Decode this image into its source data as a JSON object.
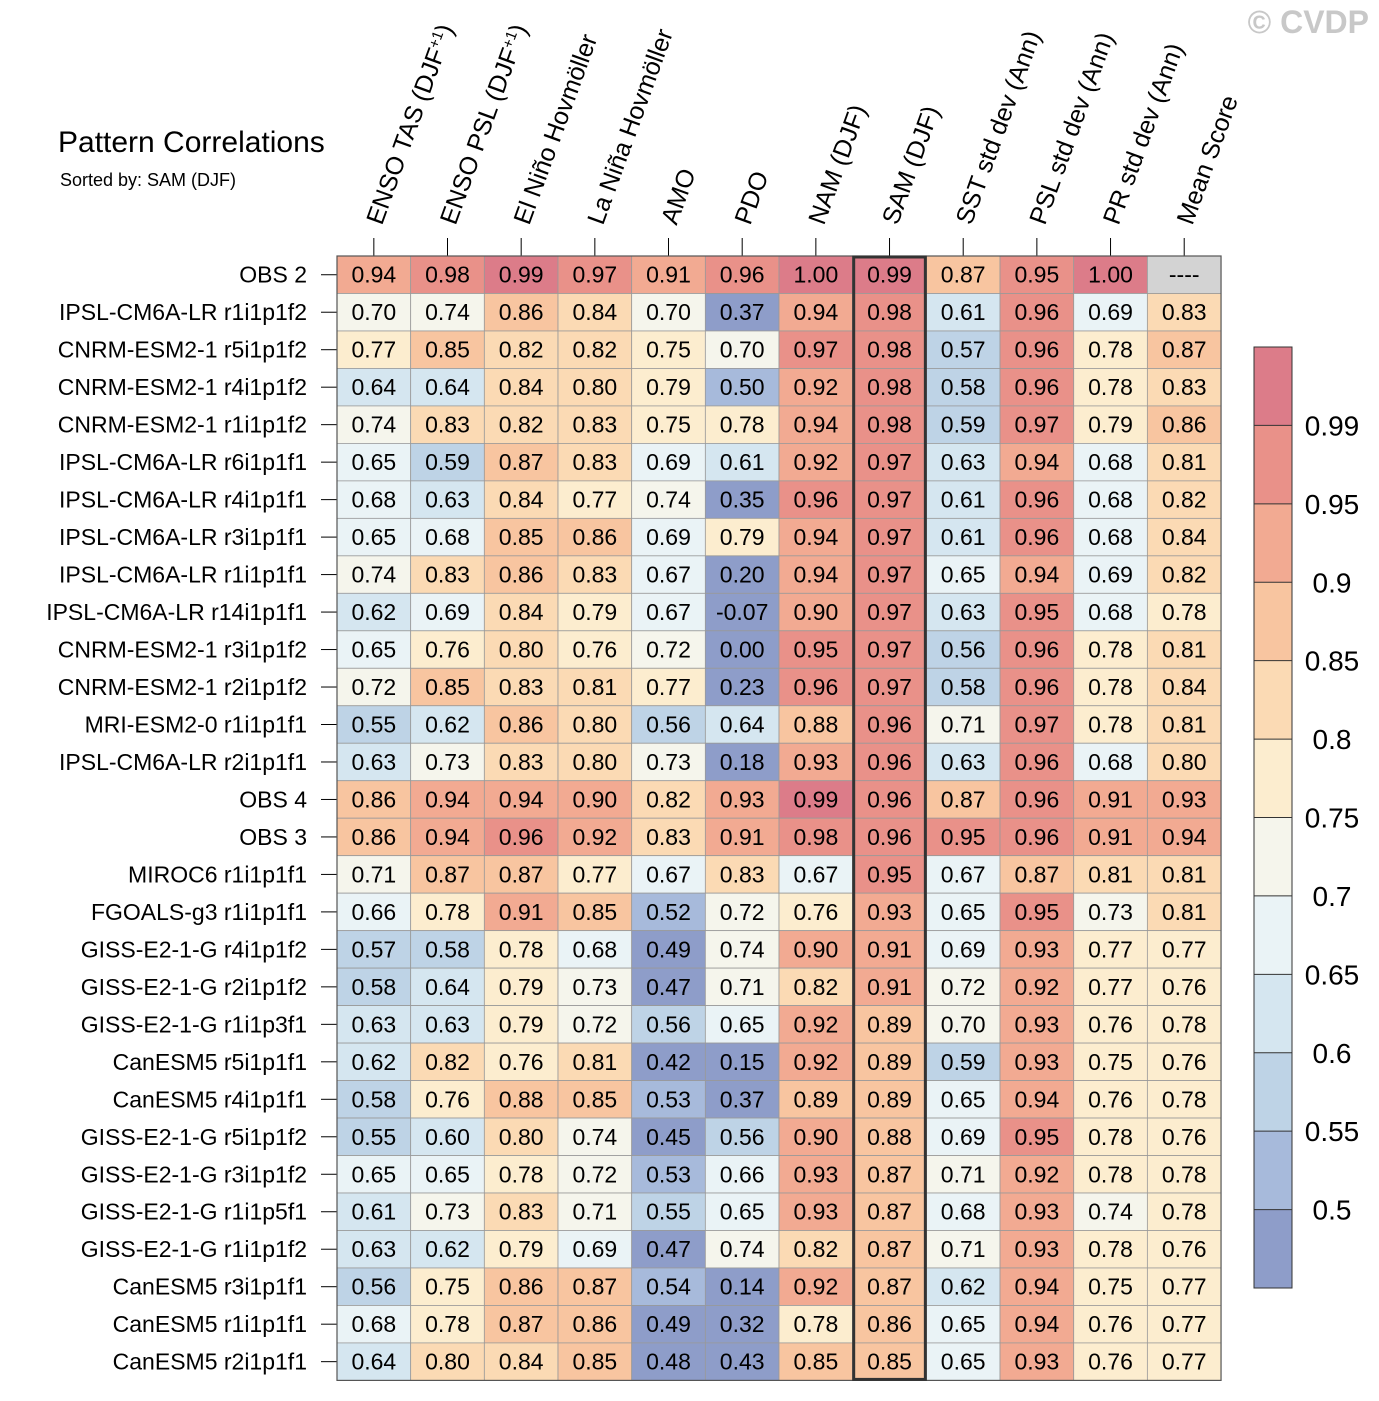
{
  "title": "Pattern Correlations",
  "sorted_by_label": "Sorted by: SAM (DJF)",
  "watermark": "© CVDP",
  "colors": {
    "palette": [
      "#8E9DC9",
      "#A7BADB",
      "#BED3E6",
      "#D5E6F0",
      "#EAF3F6",
      "#F5F5EC",
      "#FCEDCF",
      "#FBDAB4",
      "#F8C5A0",
      "#F2AA92",
      "#E99189",
      "#DC7C89"
    ],
    "na": "#d3d3d3",
    "grid": "#999999",
    "highlight": "#333333"
  },
  "chart_data": {
    "type": "heatmap",
    "title": "Pattern Correlations",
    "subtitle": "Sorted by: SAM (DJF)",
    "sorted_by": "SAM (DJF)",
    "highlight_column": "SAM (DJF)",
    "columns": [
      {
        "label": "ENSO TAS (DJF",
        "sup": "+1",
        "close": ")"
      },
      {
        "label": "ENSO PSL (DJF",
        "sup": "+1",
        "close": ")"
      },
      {
        "label": "El Niño Hovmöller",
        "sup": "",
        "close": ""
      },
      {
        "label": "La Niña Hovmöller",
        "sup": "",
        "close": ""
      },
      {
        "label": "AMO",
        "sup": "",
        "close": ""
      },
      {
        "label": "PDO",
        "sup": "",
        "close": ""
      },
      {
        "label": "NAM (DJF)",
        "sup": "",
        "close": ""
      },
      {
        "label": "SAM (DJF)",
        "sup": "",
        "close": ""
      },
      {
        "label": "SST std dev (Ann)",
        "sup": "",
        "close": ""
      },
      {
        "label": "PSL std dev (Ann)",
        "sup": "",
        "close": ""
      },
      {
        "label": "PR std dev (Ann)",
        "sup": "",
        "close": ""
      },
      {
        "label": "Mean Score",
        "sup": "",
        "close": ""
      }
    ],
    "rows": [
      {
        "name": "OBS 2",
        "values": [
          "0.94",
          "0.98",
          "0.99",
          "0.97",
          "0.91",
          "0.96",
          "1.00",
          "0.99",
          "0.87",
          "0.95",
          "1.00",
          "----"
        ]
      },
      {
        "name": "IPSL-CM6A-LR r1i1p1f2",
        "values": [
          "0.70",
          "0.74",
          "0.86",
          "0.84",
          "0.70",
          "0.37",
          "0.94",
          "0.98",
          "0.61",
          "0.96",
          "0.69",
          "0.83"
        ]
      },
      {
        "name": "CNRM-ESM2-1 r5i1p1f2",
        "values": [
          "0.77",
          "0.85",
          "0.82",
          "0.82",
          "0.75",
          "0.70",
          "0.97",
          "0.98",
          "0.57",
          "0.96",
          "0.78",
          "0.87"
        ]
      },
      {
        "name": "CNRM-ESM2-1 r4i1p1f2",
        "values": [
          "0.64",
          "0.64",
          "0.84",
          "0.80",
          "0.79",
          "0.50",
          "0.92",
          "0.98",
          "0.58",
          "0.96",
          "0.78",
          "0.83"
        ]
      },
      {
        "name": "CNRM-ESM2-1 r1i1p1f2",
        "values": [
          "0.74",
          "0.83",
          "0.82",
          "0.83",
          "0.75",
          "0.78",
          "0.94",
          "0.98",
          "0.59",
          "0.97",
          "0.79",
          "0.86"
        ]
      },
      {
        "name": "IPSL-CM6A-LR r6i1p1f1",
        "values": [
          "0.65",
          "0.59",
          "0.87",
          "0.83",
          "0.69",
          "0.61",
          "0.92",
          "0.97",
          "0.63",
          "0.94",
          "0.68",
          "0.81"
        ]
      },
      {
        "name": "IPSL-CM6A-LR r4i1p1f1",
        "values": [
          "0.68",
          "0.63",
          "0.84",
          "0.77",
          "0.74",
          "0.35",
          "0.96",
          "0.97",
          "0.61",
          "0.96",
          "0.68",
          "0.82"
        ]
      },
      {
        "name": "IPSL-CM6A-LR r3i1p1f1",
        "values": [
          "0.65",
          "0.68",
          "0.85",
          "0.86",
          "0.69",
          "0.79",
          "0.94",
          "0.97",
          "0.61",
          "0.96",
          "0.68",
          "0.84"
        ]
      },
      {
        "name": "IPSL-CM6A-LR r1i1p1f1",
        "values": [
          "0.74",
          "0.83",
          "0.86",
          "0.83",
          "0.67",
          "0.20",
          "0.94",
          "0.97",
          "0.65",
          "0.94",
          "0.69",
          "0.82"
        ]
      },
      {
        "name": "IPSL-CM6A-LR r14i1p1f1",
        "values": [
          "0.62",
          "0.69",
          "0.84",
          "0.79",
          "0.67",
          "-0.07",
          "0.90",
          "0.97",
          "0.63",
          "0.95",
          "0.68",
          "0.78"
        ]
      },
      {
        "name": "CNRM-ESM2-1 r3i1p1f2",
        "values": [
          "0.65",
          "0.76",
          "0.80",
          "0.76",
          "0.72",
          "0.00",
          "0.95",
          "0.97",
          "0.56",
          "0.96",
          "0.78",
          "0.81"
        ]
      },
      {
        "name": "CNRM-ESM2-1 r2i1p1f2",
        "values": [
          "0.72",
          "0.85",
          "0.83",
          "0.81",
          "0.77",
          "0.23",
          "0.96",
          "0.97",
          "0.58",
          "0.96",
          "0.78",
          "0.84"
        ]
      },
      {
        "name": "MRI-ESM2-0 r1i1p1f1",
        "values": [
          "0.55",
          "0.62",
          "0.86",
          "0.80",
          "0.56",
          "0.64",
          "0.88",
          "0.96",
          "0.71",
          "0.97",
          "0.78",
          "0.81"
        ]
      },
      {
        "name": "IPSL-CM6A-LR r2i1p1f1",
        "values": [
          "0.63",
          "0.73",
          "0.83",
          "0.80",
          "0.73",
          "0.18",
          "0.93",
          "0.96",
          "0.63",
          "0.96",
          "0.68",
          "0.80"
        ]
      },
      {
        "name": "OBS 4",
        "values": [
          "0.86",
          "0.94",
          "0.94",
          "0.90",
          "0.82",
          "0.93",
          "0.99",
          "0.96",
          "0.87",
          "0.96",
          "0.91",
          "0.93"
        ]
      },
      {
        "name": "OBS 3",
        "values": [
          "0.86",
          "0.94",
          "0.96",
          "0.92",
          "0.83",
          "0.91",
          "0.98",
          "0.96",
          "0.95",
          "0.96",
          "0.91",
          "0.94"
        ]
      },
      {
        "name": "MIROC6 r1i1p1f1",
        "values": [
          "0.71",
          "0.87",
          "0.87",
          "0.77",
          "0.67",
          "0.83",
          "0.67",
          "0.95",
          "0.67",
          "0.87",
          "0.81",
          "0.81"
        ]
      },
      {
        "name": "FGOALS-g3 r1i1p1f1",
        "values": [
          "0.66",
          "0.78",
          "0.91",
          "0.85",
          "0.52",
          "0.72",
          "0.76",
          "0.93",
          "0.65",
          "0.95",
          "0.73",
          "0.81"
        ]
      },
      {
        "name": "GISS-E2-1-G r4i1p1f2",
        "values": [
          "0.57",
          "0.58",
          "0.78",
          "0.68",
          "0.49",
          "0.74",
          "0.90",
          "0.91",
          "0.69",
          "0.93",
          "0.77",
          "0.77"
        ]
      },
      {
        "name": "GISS-E2-1-G r2i1p1f2",
        "values": [
          "0.58",
          "0.64",
          "0.79",
          "0.73",
          "0.47",
          "0.71",
          "0.82",
          "0.91",
          "0.72",
          "0.92",
          "0.77",
          "0.76"
        ]
      },
      {
        "name": "GISS-E2-1-G r1i1p3f1",
        "values": [
          "0.63",
          "0.63",
          "0.79",
          "0.72",
          "0.56",
          "0.65",
          "0.92",
          "0.89",
          "0.70",
          "0.93",
          "0.76",
          "0.78"
        ]
      },
      {
        "name": "CanESM5 r5i1p1f1",
        "values": [
          "0.62",
          "0.82",
          "0.76",
          "0.81",
          "0.42",
          "0.15",
          "0.92",
          "0.89",
          "0.59",
          "0.93",
          "0.75",
          "0.76"
        ]
      },
      {
        "name": "CanESM5 r4i1p1f1",
        "values": [
          "0.58",
          "0.76",
          "0.88",
          "0.85",
          "0.53",
          "0.37",
          "0.89",
          "0.89",
          "0.65",
          "0.94",
          "0.76",
          "0.78"
        ]
      },
      {
        "name": "GISS-E2-1-G r5i1p1f2",
        "values": [
          "0.55",
          "0.60",
          "0.80",
          "0.74",
          "0.45",
          "0.56",
          "0.90",
          "0.88",
          "0.69",
          "0.95",
          "0.78",
          "0.76"
        ]
      },
      {
        "name": "GISS-E2-1-G r3i1p1f2",
        "values": [
          "0.65",
          "0.65",
          "0.78",
          "0.72",
          "0.53",
          "0.66",
          "0.93",
          "0.87",
          "0.71",
          "0.92",
          "0.78",
          "0.78"
        ]
      },
      {
        "name": "GISS-E2-1-G r1i1p5f1",
        "values": [
          "0.61",
          "0.73",
          "0.83",
          "0.71",
          "0.55",
          "0.65",
          "0.93",
          "0.87",
          "0.68",
          "0.93",
          "0.74",
          "0.78"
        ]
      },
      {
        "name": "GISS-E2-1-G r1i1p1f2",
        "values": [
          "0.63",
          "0.62",
          "0.79",
          "0.69",
          "0.47",
          "0.74",
          "0.82",
          "0.87",
          "0.71",
          "0.93",
          "0.78",
          "0.76"
        ]
      },
      {
        "name": "CanESM5 r3i1p1f1",
        "values": [
          "0.56",
          "0.75",
          "0.86",
          "0.87",
          "0.54",
          "0.14",
          "0.92",
          "0.87",
          "0.62",
          "0.94",
          "0.75",
          "0.77"
        ]
      },
      {
        "name": "CanESM5 r1i1p1f1",
        "values": [
          "0.68",
          "0.78",
          "0.87",
          "0.86",
          "0.49",
          "0.32",
          "0.78",
          "0.86",
          "0.65",
          "0.94",
          "0.76",
          "0.77"
        ]
      },
      {
        "name": "CanESM5 r2i1p1f1",
        "values": [
          "0.64",
          "0.80",
          "0.84",
          "0.85",
          "0.48",
          "0.43",
          "0.85",
          "0.85",
          "0.65",
          "0.93",
          "0.76",
          "0.77"
        ]
      }
    ],
    "colorbar": {
      "levels": [
        0.5,
        0.55,
        0.6,
        0.65,
        0.7,
        0.75,
        0.8,
        0.85,
        0.9,
        0.95,
        0.99
      ],
      "tick_labels": [
        "0.5",
        "0.55",
        "0.6",
        "0.65",
        "0.7",
        "0.75",
        "0.8",
        "0.85",
        "0.9",
        "0.95",
        "0.99"
      ],
      "orientation": "vertical",
      "placement": "right"
    }
  }
}
